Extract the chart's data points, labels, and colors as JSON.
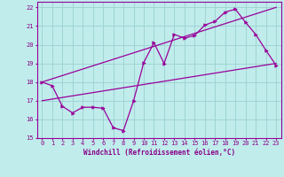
{
  "xlabel": "Windchill (Refroidissement éolien,°C)",
  "background_color": "#c0ecec",
  "grid_color": "#a0d4d4",
  "line_color": "#990099",
  "xlim": [
    -0.5,
    23.5
  ],
  "ylim": [
    15,
    22.3
  ],
  "xticks": [
    0,
    1,
    2,
    3,
    4,
    5,
    6,
    7,
    8,
    9,
    10,
    11,
    12,
    13,
    14,
    15,
    16,
    17,
    18,
    19,
    20,
    21,
    22,
    23
  ],
  "yticks": [
    15,
    16,
    17,
    18,
    19,
    20,
    21,
    22
  ],
  "data_x": [
    0,
    1,
    2,
    3,
    4,
    5,
    6,
    7,
    8,
    9,
    10,
    11,
    12,
    13,
    14,
    15,
    16,
    17,
    18,
    19,
    20,
    21,
    22,
    23
  ],
  "data_y": [
    18.0,
    17.8,
    16.7,
    16.35,
    16.65,
    16.65,
    16.6,
    15.55,
    15.4,
    17.0,
    19.05,
    20.1,
    19.0,
    20.55,
    20.35,
    20.5,
    21.05,
    21.25,
    21.75,
    21.9,
    21.2,
    20.55,
    19.7,
    18.9
  ],
  "trend1_x": [
    0,
    23
  ],
  "trend1_y": [
    18.0,
    22.0
  ],
  "trend2_x": [
    0,
    23
  ],
  "trend2_y": [
    17.0,
    19.0
  ],
  "font_color": "#880088",
  "tick_fontsize": 5,
  "xlabel_fontsize": 5.5
}
